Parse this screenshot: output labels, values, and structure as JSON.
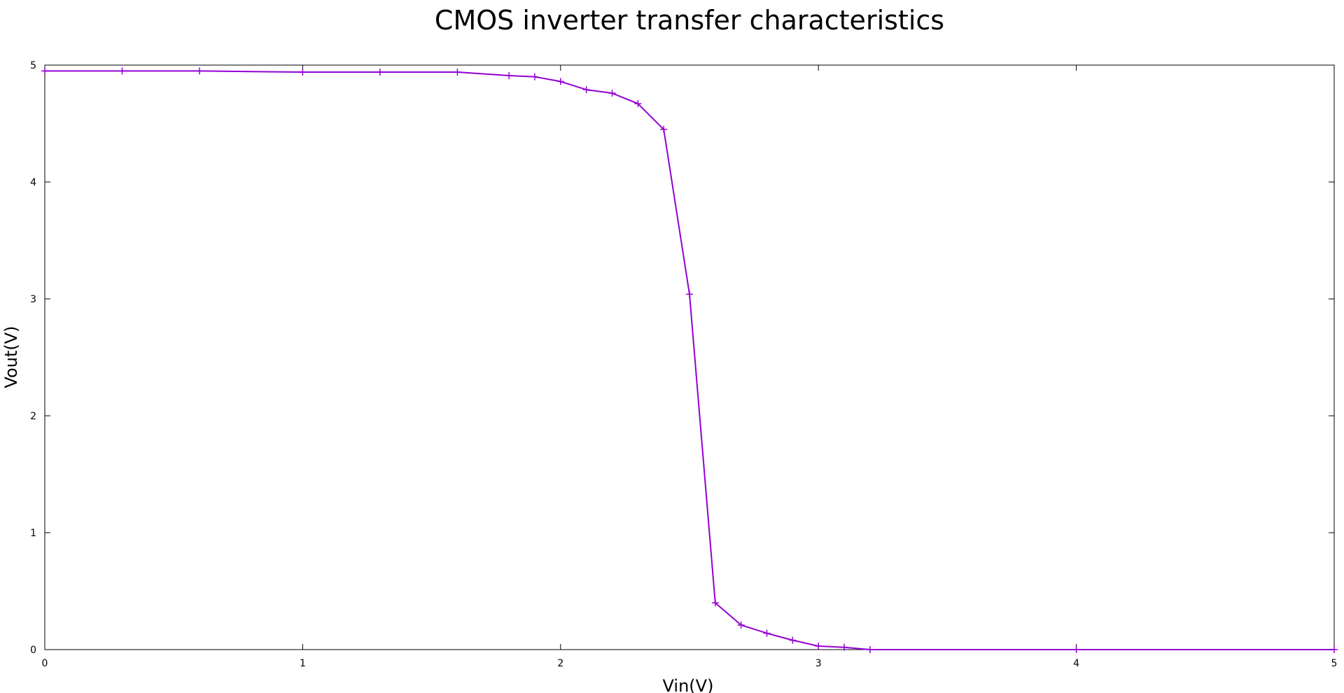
{
  "chart_data": {
    "type": "line",
    "title": "CMOS inverter transfer characteristics",
    "xlabel": "Vin(V)",
    "ylabel": "Vout(V)",
    "xlim": [
      0,
      5
    ],
    "ylim": [
      0,
      5
    ],
    "xticks": [
      "0",
      "1",
      "2",
      "3",
      "4",
      "5"
    ],
    "yticks": [
      "0",
      "1",
      "2",
      "3",
      "4",
      "5"
    ],
    "grid": false,
    "legend": "none",
    "series": [
      {
        "color": "#9400d3",
        "marker": "plus",
        "x": [
          0,
          0.3,
          0.6,
          1.0,
          1.3,
          1.6,
          1.8,
          1.9,
          2.0,
          2.1,
          2.2,
          2.3,
          2.4,
          2.5,
          2.6,
          2.7,
          2.8,
          2.9,
          3.0,
          3.1,
          3.2,
          4.0,
          5.0
        ],
        "y": [
          4.95,
          4.95,
          4.95,
          4.94,
          4.94,
          4.94,
          4.91,
          4.9,
          4.86,
          4.79,
          4.76,
          4.67,
          4.45,
          3.04,
          0.4,
          0.21,
          0.14,
          0.08,
          0.03,
          0.02,
          0.0,
          0.0,
          0.0
        ]
      }
    ]
  }
}
